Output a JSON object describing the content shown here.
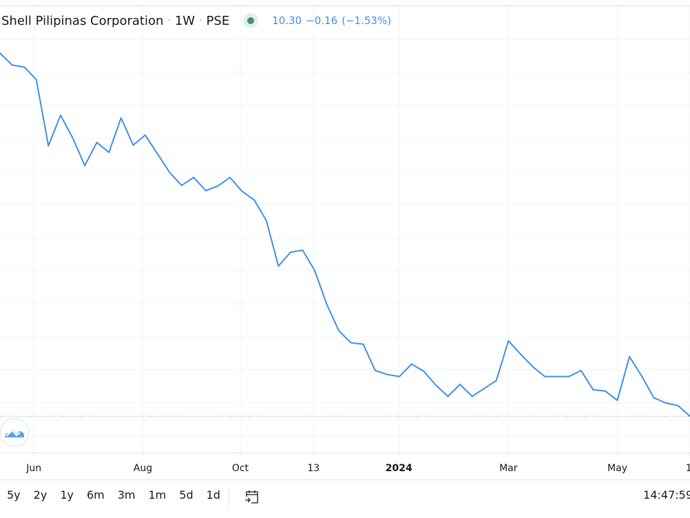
{
  "legend": {
    "symbol": "Shell Pilipinas Corporation",
    "interval": "1W",
    "exchange": "PSE",
    "separator": "·",
    "last": "10.30",
    "change": "−0.16",
    "change_pct": "(−1.53%)",
    "status_color": "#3e8e7e"
  },
  "toolbar": {
    "ranges": [
      "5y",
      "2y",
      "1y",
      "6m",
      "3m",
      "1m",
      "5d",
      "1d"
    ],
    "goto_date_icon": "calendar-goto-icon",
    "clock": "14:47:59"
  },
  "colors": {
    "line": "#3d8fe8",
    "grid": "#f0f3fa",
    "axis_text": "#131722"
  },
  "chart_data": {
    "type": "line",
    "title": "",
    "xlabel": "",
    "ylabel": "",
    "interval": "weekly",
    "ylim": [
      9.75,
      16.6
    ],
    "grid": true,
    "last_price_line": 10.3,
    "x_ticks": [
      {
        "label": "Jun",
        "at": 2.8,
        "bold": false
      },
      {
        "label": "Aug",
        "at": 11.8,
        "bold": false
      },
      {
        "label": "Oct",
        "at": 19.85,
        "bold": false
      },
      {
        "label": "13",
        "at": 25.9,
        "bold": false
      },
      {
        "label": "2024",
        "at": 32.95,
        "bold": true
      },
      {
        "label": "Mar",
        "at": 42.0,
        "bold": false
      },
      {
        "label": "May",
        "at": 51.0,
        "bold": false
      },
      {
        "label": "1",
        "at": 56.9,
        "bold": false
      }
    ],
    "values": [
      15.79,
      15.61,
      15.58,
      15.39,
      14.39,
      14.85,
      14.51,
      14.09,
      14.44,
      14.29,
      14.81,
      14.4,
      14.55,
      14.27,
      13.99,
      13.79,
      13.91,
      13.71,
      13.78,
      13.91,
      13.7,
      13.57,
      13.26,
      12.57,
      12.78,
      12.81,
      12.5,
      11.99,
      11.59,
      11.41,
      11.39,
      10.99,
      10.93,
      10.9,
      11.09,
      10.98,
      10.77,
      10.6,
      10.78,
      10.6,
      10.72,
      10.84,
      11.44,
      11.24,
      11.05,
      10.9,
      10.9,
      10.9,
      10.99,
      10.7,
      10.68,
      10.54,
      11.2,
      10.91,
      10.58,
      10.5,
      10.46,
      10.3
    ]
  }
}
